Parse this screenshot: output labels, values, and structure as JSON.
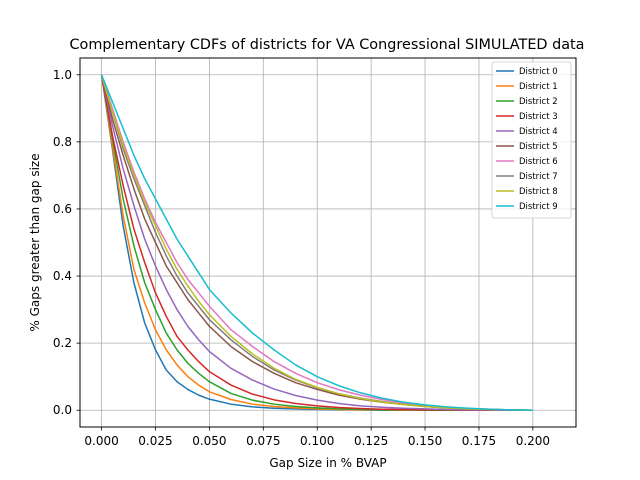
{
  "chart_data": {
    "type": "line",
    "title": "Complementary CDFs of districts for VA Congressional SIMULATED data",
    "xlabel": "Gap Size in % BVAP",
    "ylabel": "% Gaps greater than gap size",
    "xlim": [
      -0.01,
      0.22
    ],
    "ylim": [
      -0.05,
      1.05
    ],
    "xticks": [
      "0.000",
      "0.025",
      "0.050",
      "0.075",
      "0.100",
      "0.125",
      "0.150",
      "0.175",
      "0.200"
    ],
    "yticks": [
      "0.0",
      "0.2",
      "0.4",
      "0.6",
      "0.8",
      "1.0"
    ],
    "grid": true,
    "legend_position": "top-right",
    "x": [
      0.0,
      0.005,
      0.01,
      0.015,
      0.02,
      0.025,
      0.03,
      0.035,
      0.04,
      0.045,
      0.05,
      0.06,
      0.07,
      0.08,
      0.09,
      0.1,
      0.11,
      0.12,
      0.13,
      0.14,
      0.15,
      0.16,
      0.17,
      0.18,
      0.19,
      0.2
    ],
    "series": [
      {
        "name": "District 0",
        "color": "#1f77b4",
        "values": [
          1.0,
          0.78,
          0.55,
          0.38,
          0.26,
          0.18,
          0.12,
          0.085,
          0.062,
          0.045,
          0.033,
          0.018,
          0.01,
          0.006,
          0.004,
          0.002,
          0.001,
          0.001,
          0.0,
          0.0,
          0.0,
          0.0,
          0.0,
          0.0,
          0.0,
          0.0
        ]
      },
      {
        "name": "District 1",
        "color": "#ff7f0e",
        "values": [
          1.0,
          0.79,
          0.58,
          0.42,
          0.32,
          0.24,
          0.18,
          0.135,
          0.1,
          0.075,
          0.055,
          0.032,
          0.018,
          0.011,
          0.007,
          0.004,
          0.002,
          0.001,
          0.001,
          0.0,
          0.0,
          0.0,
          0.0,
          0.0,
          0.0,
          0.0
        ]
      },
      {
        "name": "District 2",
        "color": "#2ca02c",
        "values": [
          1.0,
          0.81,
          0.63,
          0.49,
          0.38,
          0.3,
          0.23,
          0.18,
          0.14,
          0.11,
          0.085,
          0.05,
          0.03,
          0.018,
          0.011,
          0.007,
          0.004,
          0.002,
          0.001,
          0.001,
          0.0,
          0.0,
          0.0,
          0.0,
          0.0,
          0.0
        ]
      },
      {
        "name": "District 3",
        "color": "#d62728",
        "values": [
          1.0,
          0.82,
          0.67,
          0.54,
          0.44,
          0.35,
          0.28,
          0.22,
          0.18,
          0.145,
          0.115,
          0.075,
          0.048,
          0.031,
          0.02,
          0.013,
          0.008,
          0.005,
          0.003,
          0.002,
          0.001,
          0.001,
          0.0,
          0.0,
          0.0,
          0.0
        ]
      },
      {
        "name": "District 4",
        "color": "#9467bd",
        "values": [
          1.0,
          0.85,
          0.72,
          0.61,
          0.51,
          0.43,
          0.36,
          0.3,
          0.25,
          0.21,
          0.175,
          0.125,
          0.09,
          0.063,
          0.044,
          0.03,
          0.02,
          0.013,
          0.009,
          0.006,
          0.004,
          0.002,
          0.001,
          0.001,
          0.0,
          0.0
        ]
      },
      {
        "name": "District 5",
        "color": "#8c564b",
        "values": [
          1.0,
          0.87,
          0.76,
          0.66,
          0.57,
          0.5,
          0.43,
          0.38,
          0.33,
          0.29,
          0.25,
          0.19,
          0.145,
          0.11,
          0.082,
          0.062,
          0.045,
          0.033,
          0.024,
          0.017,
          0.011,
          0.007,
          0.004,
          0.002,
          0.001,
          0.0
        ]
      },
      {
        "name": "District 6",
        "color": "#e377c2",
        "values": [
          1.0,
          0.9,
          0.8,
          0.71,
          0.63,
          0.56,
          0.5,
          0.44,
          0.39,
          0.35,
          0.31,
          0.24,
          0.19,
          0.145,
          0.11,
          0.082,
          0.061,
          0.045,
          0.032,
          0.022,
          0.014,
          0.009,
          0.005,
          0.003,
          0.001,
          0.0
        ]
      },
      {
        "name": "District 7",
        "color": "#7f7f7f",
        "values": [
          1.0,
          0.89,
          0.78,
          0.69,
          0.61,
          0.53,
          0.46,
          0.4,
          0.35,
          0.31,
          0.27,
          0.21,
          0.16,
          0.12,
          0.09,
          0.067,
          0.049,
          0.036,
          0.026,
          0.018,
          0.012,
          0.008,
          0.005,
          0.003,
          0.001,
          0.0
        ]
      },
      {
        "name": "District 8",
        "color": "#bcbd22",
        "values": [
          1.0,
          0.89,
          0.79,
          0.7,
          0.62,
          0.55,
          0.48,
          0.42,
          0.37,
          0.325,
          0.285,
          0.22,
          0.168,
          0.125,
          0.092,
          0.068,
          0.049,
          0.035,
          0.025,
          0.017,
          0.011,
          0.007,
          0.004,
          0.002,
          0.001,
          0.0
        ]
      },
      {
        "name": "District 9",
        "color": "#17becf",
        "values": [
          1.0,
          0.92,
          0.84,
          0.76,
          0.69,
          0.63,
          0.57,
          0.51,
          0.46,
          0.41,
          0.36,
          0.29,
          0.23,
          0.18,
          0.135,
          0.1,
          0.073,
          0.052,
          0.036,
          0.024,
          0.016,
          0.01,
          0.006,
          0.003,
          0.001,
          0.0
        ]
      }
    ]
  }
}
